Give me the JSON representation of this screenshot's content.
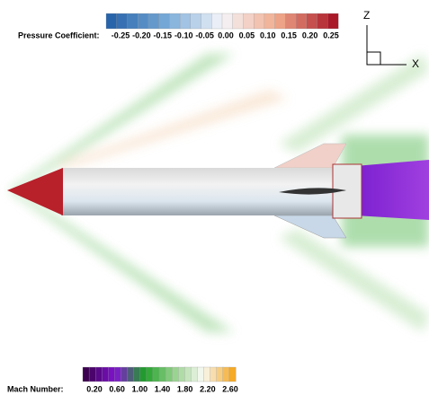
{
  "pressure_legend": {
    "title": "Pressure Coefficient:",
    "ticks": [
      "-0.25",
      "-0.20",
      "-0.15",
      "-0.10",
      "-0.05",
      "0.00",
      "0.05",
      "0.10",
      "0.15",
      "0.20",
      "0.25"
    ]
  },
  "mach_legend": {
    "title": "Mach Number:",
    "ticks": [
      "0.20",
      "0.60",
      "1.00",
      "1.40",
      "1.80",
      "2.20",
      "2.60"
    ]
  },
  "axes": {
    "z": "Z",
    "x": "X"
  }
}
